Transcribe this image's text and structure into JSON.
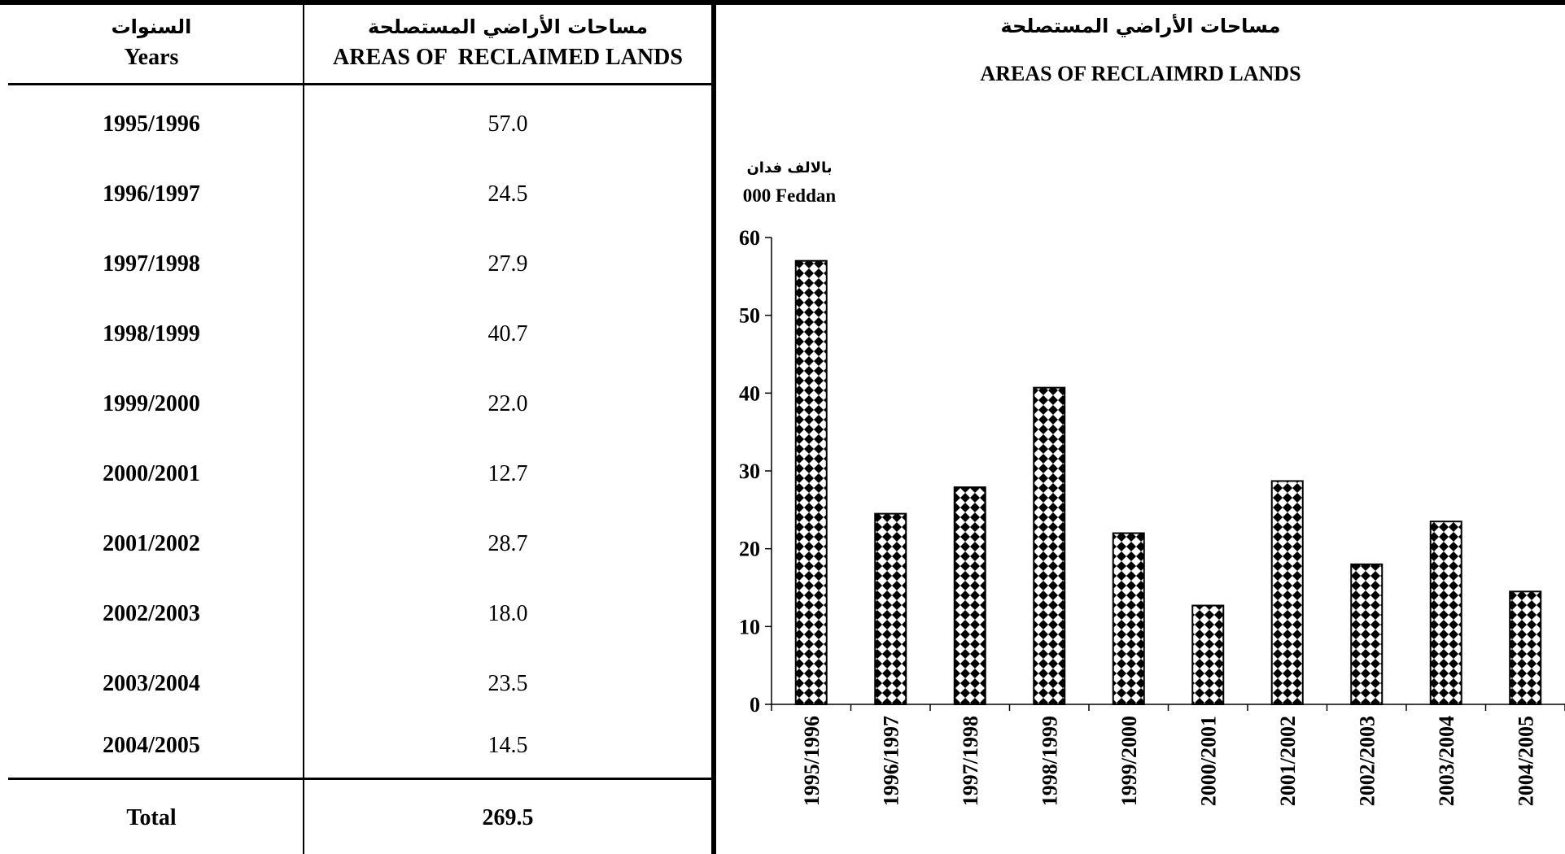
{
  "table": {
    "header_years_ar": "السنوات",
    "header_years_en": "Years",
    "header_areas_ar": "مساحات الأراضي المستصلحة",
    "header_areas_en": "AREAS OF  RECLAIMED LANDS",
    "rows": [
      {
        "year": "1995/1996",
        "value": "57.0"
      },
      {
        "year": "1996/1997",
        "value": "24.5"
      },
      {
        "year": "1997/1998",
        "value": "27.9"
      },
      {
        "year": "1998/1999",
        "value": "40.7"
      },
      {
        "year": "1999/2000",
        "value": "22.0"
      },
      {
        "year": "2000/2001",
        "value": "12.7"
      },
      {
        "year": "2001/2002",
        "value": "28.7"
      },
      {
        "year": "2002/2003",
        "value": "18.0"
      },
      {
        "year": "2003/2004",
        "value": "23.5"
      },
      {
        "year": "2004/2005",
        "value": "14.5"
      }
    ],
    "total_label": "Total",
    "total_value": "269.5"
  },
  "chart_data": {
    "type": "bar",
    "title": "مساحات الأراضي المستصلحة",
    "subtitle": "AREAS OF RECLAIMRD LANDS",
    "ylabel_ar": "بالالف فدان",
    "ylabel": "000 Feddan",
    "categories": [
      "1995/1996",
      "1996/1997",
      "1997/1998",
      "1998/1999",
      "1999/2000",
      "2000/2001",
      "2001/2002",
      "2002/2003",
      "2003/2004",
      "2004/2005"
    ],
    "values": [
      57.0,
      24.5,
      27.9,
      40.7,
      22.0,
      12.7,
      28.7,
      18.0,
      23.5,
      14.5
    ],
    "ylim": [
      0,
      60
    ],
    "yticks": [
      0,
      10,
      20,
      30,
      40,
      50,
      60
    ],
    "grid": false,
    "bar_pattern": "checkered-diamond",
    "colors": {
      "bar_fill": "#000000",
      "bar_pattern_bg": "#ffffff",
      "axis": "#000000"
    }
  }
}
